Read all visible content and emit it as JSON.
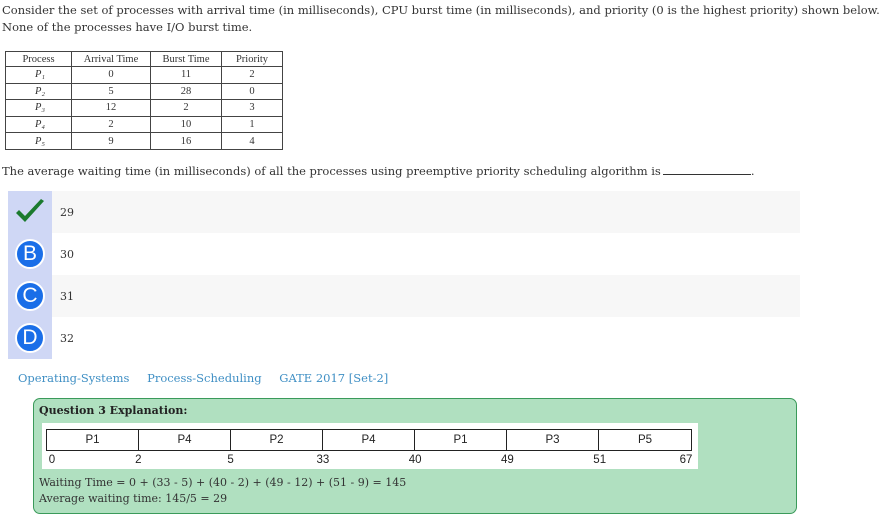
{
  "question": {
    "text": "Consider the set of processes with arrival time (in milliseconds), CPU burst time (in milliseconds), and priority (0 is the highest priority) shown below. None of the processes have I/O burst time.",
    "table": {
      "headers": [
        "Process",
        "Arrival Time",
        "Burst Time",
        "Priority"
      ],
      "rows": [
        {
          "process": "P₁",
          "arrival": "0",
          "burst": "11",
          "priority": "2"
        },
        {
          "process": "P₂",
          "arrival": "5",
          "burst": "28",
          "priority": "0"
        },
        {
          "process": "P₃",
          "arrival": "12",
          "burst": "2",
          "priority": "3"
        },
        {
          "process": "P₄",
          "arrival": "2",
          "burst": "10",
          "priority": "1"
        },
        {
          "process": "P₅",
          "arrival": "9",
          "burst": "16",
          "priority": "4"
        }
      ]
    },
    "prompt": "The average waiting time (in milliseconds) of all the processes using preemptive priority scheduling algorithm is",
    "prompt_end": "."
  },
  "options": [
    {
      "badge": "",
      "text": "29",
      "correct": true
    },
    {
      "badge": "B",
      "text": "30",
      "correct": false
    },
    {
      "badge": "C",
      "text": "31",
      "correct": false
    },
    {
      "badge": "D",
      "text": "32",
      "correct": false
    }
  ],
  "tags": [
    "Operating-Systems",
    "Process-Scheduling",
    "GATE 2017 [Set-2]"
  ],
  "explanation": {
    "title": "Question 3 Explanation:",
    "gantt": {
      "segments": [
        {
          "label": "P1",
          "start": 0,
          "end": 2
        },
        {
          "label": "P4",
          "start": 2,
          "end": 5
        },
        {
          "label": "P2",
          "start": 5,
          "end": 33
        },
        {
          "label": "P4",
          "start": 33,
          "end": 40
        },
        {
          "label": "P1",
          "start": 40,
          "end": 49
        },
        {
          "label": "P3",
          "start": 49,
          "end": 51
        },
        {
          "label": "P5",
          "start": 51,
          "end": 67
        }
      ],
      "ticks": [
        "0",
        "2",
        "5",
        "33",
        "40",
        "49",
        "51",
        "67"
      ]
    },
    "line1": "Waiting Time = 0 + (33 - 5) + (40 - 2) + (49 - 12) + (51 - 9) = 145",
    "line2": "Average waiting time: 145/5 = 29"
  },
  "colors": {
    "badge_blue": "#1a6ee8",
    "badge_column": "#cfd7f5",
    "check_green": "#1b7a2e",
    "tag_link": "#3f8fc4",
    "explanation_bg": "#b0e0c0",
    "explanation_border": "#3a9a5a"
  }
}
